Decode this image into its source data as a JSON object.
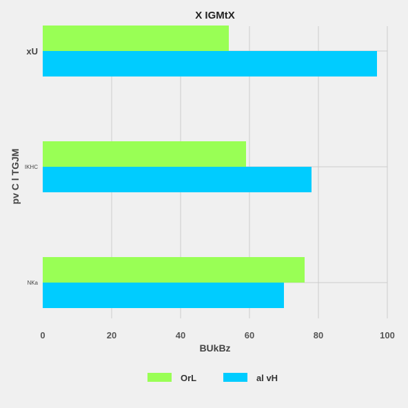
{
  "chart_data": {
    "type": "bar",
    "orientation": "horizontal",
    "title": "X IGMtX",
    "xlabel": "BUkBz",
    "ylabel": "pv  C  l TGJM",
    "categories": [
      "xU",
      "IKHC",
      "NKa"
    ],
    "series": [
      {
        "name": "OrL",
        "color": "#99ff55",
        "values": [
          54,
          59,
          76
        ]
      },
      {
        "name": "al vH",
        "color": "#00ccff",
        "values": [
          97,
          78,
          70
        ]
      }
    ],
    "xlim": [
      0,
      100
    ],
    "xticks": [
      0,
      20,
      40,
      60,
      80,
      100
    ],
    "grid": true,
    "legend_position": "bottom"
  }
}
